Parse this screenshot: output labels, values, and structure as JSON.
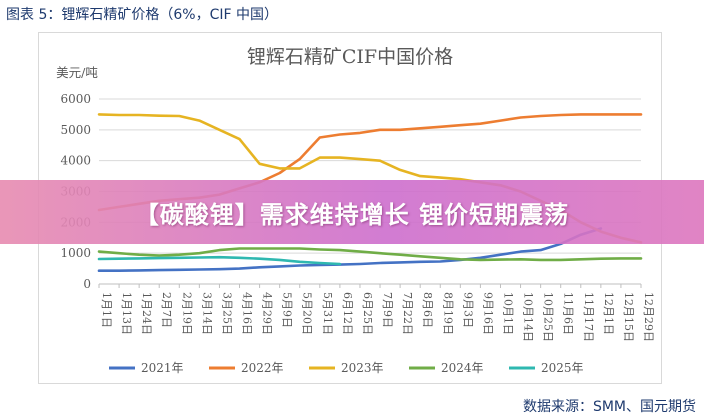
{
  "caption": "图表 5：锂辉石精矿价格（6%，CIF 中国）",
  "source": "数据来源：SMM、国元期货",
  "banner": "【碳酸锂】需求维持增长 锂价短期震荡",
  "colors": {
    "2021年": "#4472c4",
    "2022年": "#ed7d31",
    "2023年": "#e6b422",
    "2024年": "#70ad47",
    "2025年": "#2fb8b0"
  },
  "chart_data": {
    "type": "line",
    "title": "锂辉石精矿CIF中国价格",
    "unit_label": "美元/吨",
    "ylim": [
      0,
      6000
    ],
    "yticks": [
      0,
      1000,
      2000,
      3000,
      4000,
      5000,
      6000
    ],
    "grid": true,
    "legend_position": "bottom",
    "x_tick_labels": [
      "1月1日",
      "1月13日",
      "1月24日",
      "2月7日",
      "2月19日",
      "3月14日",
      "3月25日",
      "4月16日",
      "4月29日",
      "5月9日",
      "5月20日",
      "5月31日",
      "6月12日",
      "6月25日",
      "7月9日",
      "7月22日",
      "8月6日",
      "8月19日",
      "9月3日",
      "9月16日",
      "10月1日",
      "10月14日",
      "10月25日",
      "11月6日",
      "11月17日",
      "12月1日",
      "12月15日",
      "12月29日"
    ],
    "series": [
      {
        "name": "2021年",
        "values": [
          430,
          430,
          440,
          450,
          460,
          470,
          480,
          500,
          540,
          570,
          600,
          620,
          630,
          650,
          680,
          700,
          720,
          730,
          780,
          850,
          950,
          1050,
          1100,
          1300,
          1600,
          1800,
          null,
          null
        ]
      },
      {
        "name": "2022年",
        "values": [
          2400,
          2500,
          2600,
          2700,
          2750,
          2800,
          2900,
          3100,
          3300,
          3600,
          4050,
          4750,
          4850,
          4900,
          5000,
          5000,
          5050,
          5100,
          5150,
          5200,
          5300,
          5400,
          5450,
          5480,
          5500,
          5500,
          5500,
          5500
        ]
      },
      {
        "name": "2023年",
        "values": [
          5500,
          5480,
          5480,
          5460,
          5450,
          5300,
          5000,
          4700,
          3900,
          3750,
          3750,
          4100,
          4100,
          4050,
          4000,
          3700,
          3500,
          3450,
          3400,
          3300,
          3200,
          3000,
          2700,
          2400,
          2000,
          1700,
          1500,
          1350
        ]
      },
      {
        "name": "2024年",
        "values": [
          1050,
          1000,
          950,
          920,
          950,
          1000,
          1100,
          1150,
          1150,
          1150,
          1150,
          1120,
          1100,
          1050,
          1000,
          950,
          900,
          850,
          800,
          780,
          790,
          800,
          780,
          780,
          800,
          820,
          830,
          830
        ]
      },
      {
        "name": "2025年",
        "values": [
          810,
          820,
          830,
          840,
          850,
          860,
          870,
          850,
          820,
          780,
          720,
          680,
          650,
          null,
          null,
          null,
          null,
          null,
          null,
          null,
          null,
          null,
          null,
          null,
          null,
          null,
          null,
          null
        ]
      }
    ]
  }
}
